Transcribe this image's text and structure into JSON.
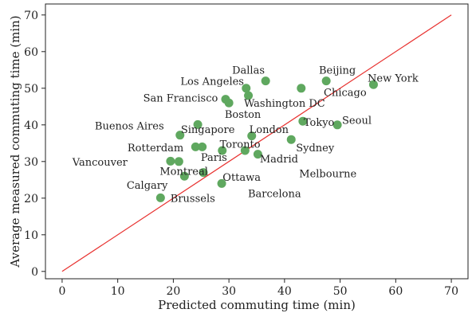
{
  "chart_data": {
    "type": "scatter",
    "xlabel": "Predicted commuting time (min)",
    "ylabel": "Average measured commuting time (min)",
    "xlim": [
      -3,
      73
    ],
    "ylim": [
      -2,
      73
    ],
    "x_ticks": [
      0,
      10,
      20,
      30,
      40,
      50,
      60,
      70
    ],
    "y_ticks": [
      0,
      10,
      20,
      30,
      40,
      50,
      60,
      70
    ],
    "grid": false,
    "reference_line": {
      "from": [
        0,
        0
      ],
      "to": [
        70,
        70
      ],
      "color": "#e8312f"
    },
    "point_color": "#5fa85f",
    "points": [
      {
        "x": 17.7,
        "y": 20.1
      },
      {
        "x": 19.5,
        "y": 30.1
      },
      {
        "x": 21.0,
        "y": 30.0
      },
      {
        "x": 21.2,
        "y": 37.2
      },
      {
        "x": 22.0,
        "y": 26.0
      },
      {
        "x": 24.0,
        "y": 34.0
      },
      {
        "x": 24.4,
        "y": 40.1
      },
      {
        "x": 25.2,
        "y": 34.0
      },
      {
        "x": 25.4,
        "y": 27.0
      },
      {
        "x": 28.7,
        "y": 24.0
      },
      {
        "x": 28.8,
        "y": 33.0
      },
      {
        "x": 29.4,
        "y": 47.0
      },
      {
        "x": 30.0,
        "y": 46.0
      },
      {
        "x": 32.9,
        "y": 33.0
      },
      {
        "x": 33.1,
        "y": 50.0
      },
      {
        "x": 33.5,
        "y": 48.0
      },
      {
        "x": 34.1,
        "y": 37.0
      },
      {
        "x": 35.2,
        "y": 32.0
      },
      {
        "x": 36.6,
        "y": 52.0
      },
      {
        "x": 41.2,
        "y": 36.0
      },
      {
        "x": 43.0,
        "y": 50.0
      },
      {
        "x": 43.3,
        "y": 41.0
      },
      {
        "x": 47.5,
        "y": 52.0
      },
      {
        "x": 49.5,
        "y": 40.0
      },
      {
        "x": 56.0,
        "y": 51.0
      }
    ],
    "annotations": [
      {
        "text": "Dallas",
        "x": 33.5,
        "y": 54.8
      },
      {
        "text": "Beijing",
        "x": 49.5,
        "y": 54.8
      },
      {
        "text": "New York",
        "x": 59.5,
        "y": 52.7
      },
      {
        "text": "Los Angeles",
        "x": 27.0,
        "y": 51.8
      },
      {
        "text": "Chicago",
        "x": 50.9,
        "y": 48.8
      },
      {
        "text": "San Francisco",
        "x": 21.3,
        "y": 47.2
      },
      {
        "text": "Washington DC",
        "x": 40.0,
        "y": 45.8
      },
      {
        "text": "Boston",
        "x": 32.5,
        "y": 42.8
      },
      {
        "text": "Buenos Aires",
        "x": 12.1,
        "y": 39.6
      },
      {
        "text": "Tokyo",
        "x": 46.2,
        "y": 40.6
      },
      {
        "text": "Seoul",
        "x": 53.0,
        "y": 41.2
      },
      {
        "text": "Singapore",
        "x": 26.2,
        "y": 38.6
      },
      {
        "text": "London",
        "x": 37.2,
        "y": 38.6
      },
      {
        "text": "Toronto",
        "x": 32.0,
        "y": 34.6
      },
      {
        "text": "Rotterdam",
        "x": 16.8,
        "y": 33.6
      },
      {
        "text": "Sydney",
        "x": 45.5,
        "y": 33.6
      },
      {
        "text": "Paris",
        "x": 27.3,
        "y": 31.0
      },
      {
        "text": "Madrid",
        "x": 39.0,
        "y": 30.6
      },
      {
        "text": "Vancouver",
        "x": 6.8,
        "y": 29.7
      },
      {
        "text": "Montreal",
        "x": 21.9,
        "y": 27.2
      },
      {
        "text": "Melbourne",
        "x": 47.8,
        "y": 26.6
      },
      {
        "text": "Ottawa",
        "x": 32.3,
        "y": 25.6
      },
      {
        "text": "Calgary",
        "x": 15.3,
        "y": 23.4
      },
      {
        "text": "Barcelona",
        "x": 38.2,
        "y": 21.2
      },
      {
        "text": "Brussels",
        "x": 23.5,
        "y": 19.8
      }
    ]
  }
}
